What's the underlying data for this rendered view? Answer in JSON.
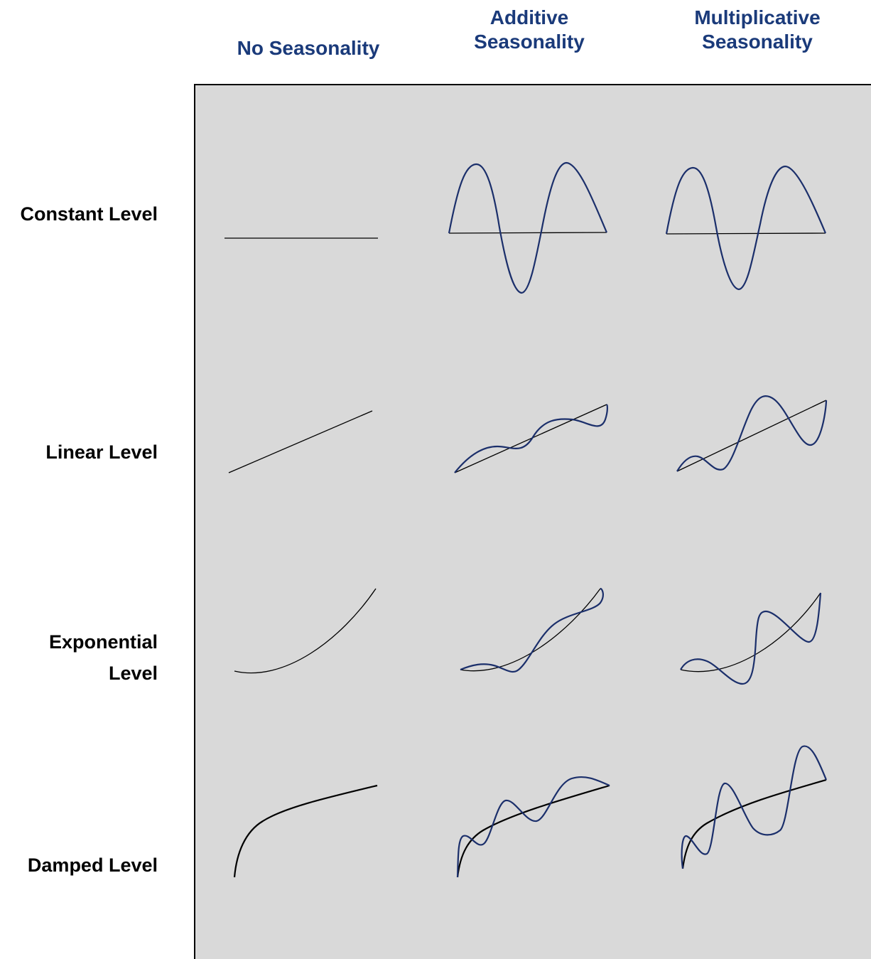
{
  "column_headers": {
    "no_seasonality": "No Seasonality",
    "additive_line1": "Additive",
    "additive_line2": "Seasonality",
    "multiplicative_line1": "Multiplicative",
    "multiplicative_line2": "Seasonality"
  },
  "row_headers": {
    "constant": "Constant Level",
    "linear": "Linear Level",
    "exponential_line1": "Exponential",
    "exponential_line2": "Level",
    "damped": "Damped Level"
  },
  "colors": {
    "seasonal_curve": "#1b2f6b",
    "trend_line": "#000000",
    "panel_background": "#d9d9d9",
    "header_text": "#1a3a7a"
  }
}
